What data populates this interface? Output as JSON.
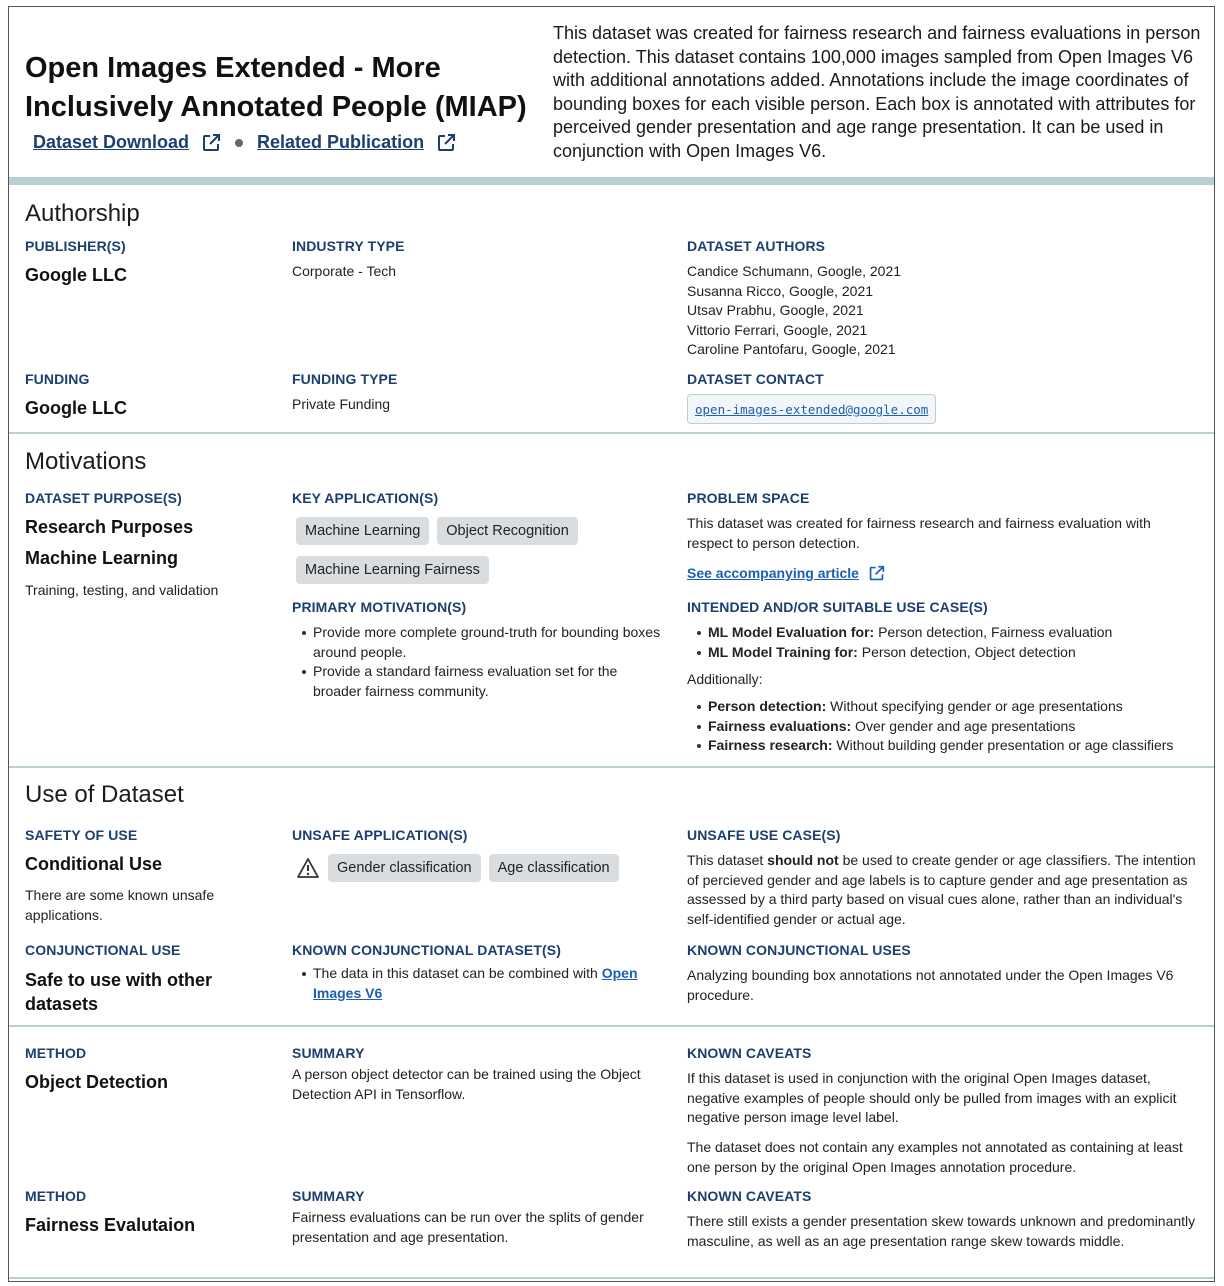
{
  "header": {
    "title": "Open Images Extended - More Inclusively Annotated People (MIAP)",
    "download_link": "Dataset Download",
    "publication_link": "Related Publication",
    "summary": "This dataset was created for fairness research and fairness evaluations in person detection. This dataset contains 100,000 images sampled from Open Images V6 with additional annotations added. Annotations include the image coordinates of bounding boxes for each visible person. Each box is annotated with attributes for perceived gender presentation and age range presentation. It can be used in conjunction with Open Images V6."
  },
  "authorship": {
    "heading": "Authorship",
    "publisher_label": "PUBLISHER(S)",
    "publisher": "Google LLC",
    "industry_label": "INDUSTRY TYPE",
    "industry": "Corporate - Tech",
    "authors_label": "DATASET AUTHORS",
    "authors": [
      "Candice Schumann, Google, 2021",
      "Susanna Ricco, Google, 2021",
      "Utsav Prabhu, Google, 2021",
      "Vittorio Ferrari, Google, 2021",
      "Caroline Pantofaru, Google, 2021"
    ],
    "funding_label": "FUNDING",
    "funding": "Google LLC",
    "funding_type_label": "FUNDING TYPE",
    "funding_type": "Private Funding",
    "contact_label": "DATASET CONTACT",
    "contact": "open-images-extended@google.com"
  },
  "motivations": {
    "heading": "Motivations",
    "purpose_label": "DATASET PURPOSE(S)",
    "purpose1": "Research Purposes",
    "purpose2": "Machine Learning",
    "purpose_note": "Training, testing, and validation",
    "key_app_label": "KEY APPLICATION(S)",
    "chips": [
      "Machine Learning",
      "Object Recognition",
      "Machine Learning Fairness"
    ],
    "primary_label": "PRIMARY MOTIVATION(S)",
    "primary": [
      "Provide more complete ground-truth for bounding boxes around people.",
      "Provide a standard fairness evaluation set for the broader fairness community."
    ],
    "problem_label": "PROBLEM SPACE",
    "problem": "This dataset was created for fairness research and fairness evaluation with respect to person detection.",
    "article_link": "See accompanying article",
    "intended_label": "INTENDED AND/OR SUITABLE USE CASE(S)",
    "intended": [
      {
        "bold": "ML Model Evaluation for:",
        "rest": " Person detection, Fairness evaluation"
      },
      {
        "bold": "ML Model Training for:",
        "rest": " Person detection, Object detection"
      }
    ],
    "additionally": "Additionally:",
    "additional": [
      {
        "bold": "Person detection:",
        "rest": " Without specifying gender or age presentations"
      },
      {
        "bold": "Fairness evaluations:",
        "rest": " Over gender and age presentations"
      },
      {
        "bold": "Fairness research:",
        "rest": " Without building gender presentation or age classifiers"
      }
    ]
  },
  "use": {
    "heading": "Use of Dataset",
    "safety_label": "SAFETY OF USE",
    "safety": "Conditional Use",
    "safety_note": "There are some known unsafe applications.",
    "unsafe_app_label": "UNSAFE APPLICATION(S)",
    "unsafe_chips": [
      "Gender classification",
      "Age classification"
    ],
    "unsafe_case_label": "UNSAFE USE CASE(S)",
    "unsafe_case_pre": "This dataset ",
    "unsafe_case_bold": "should not",
    "unsafe_case_post": " be used to create gender or age classifiers. The intention of percieved gender and age labels is to capture gender and age presentation as assessed by a third party based on visual cues alone, rather than an individual's self-identified gender or actual age.",
    "conj_label": "CONJUNCTIONAL USE",
    "conj": "Safe to use with other datasets",
    "known_ds_label": "KNOWN CONJUNCTIONAL DATASET(S)",
    "known_ds_pre": "The data in this dataset can be combined with ",
    "known_ds_link": "Open Images V6",
    "known_uses_label": "KNOWN CONJUNCTIONAL USES",
    "known_uses": "Analyzing bounding box annotations not annotated under the Open Images V6 procedure."
  },
  "methods": [
    {
      "method_label": "METHOD",
      "method": "Object Detection",
      "summary_label": "SUMMARY",
      "summary": "A person object detector can be trained using the Object Detection API in Tensorflow.",
      "caveats_label": "KNOWN CAVEATS",
      "caveats": [
        "If this dataset is used in conjunction with the original Open Images dataset, negative examples of people should only be pulled from images with an explicit negative person image level label.",
        "The dataset does not contain any examples not annotated as containing at least one person by the original Open Images annotation procedure."
      ]
    },
    {
      "method_label": "METHOD",
      "method": "Fairness Evalutaion",
      "summary_label": "SUMMARY",
      "summary": "Fairness evaluations can be run over the splits of gender presentation and age presentation.",
      "caveats_label": "KNOWN CAVEATS",
      "caveats": [
        "There still exists a gender presentation skew towards unknown and predominantly masculine, as well as an age presentation range skew towards middle."
      ]
    }
  ]
}
